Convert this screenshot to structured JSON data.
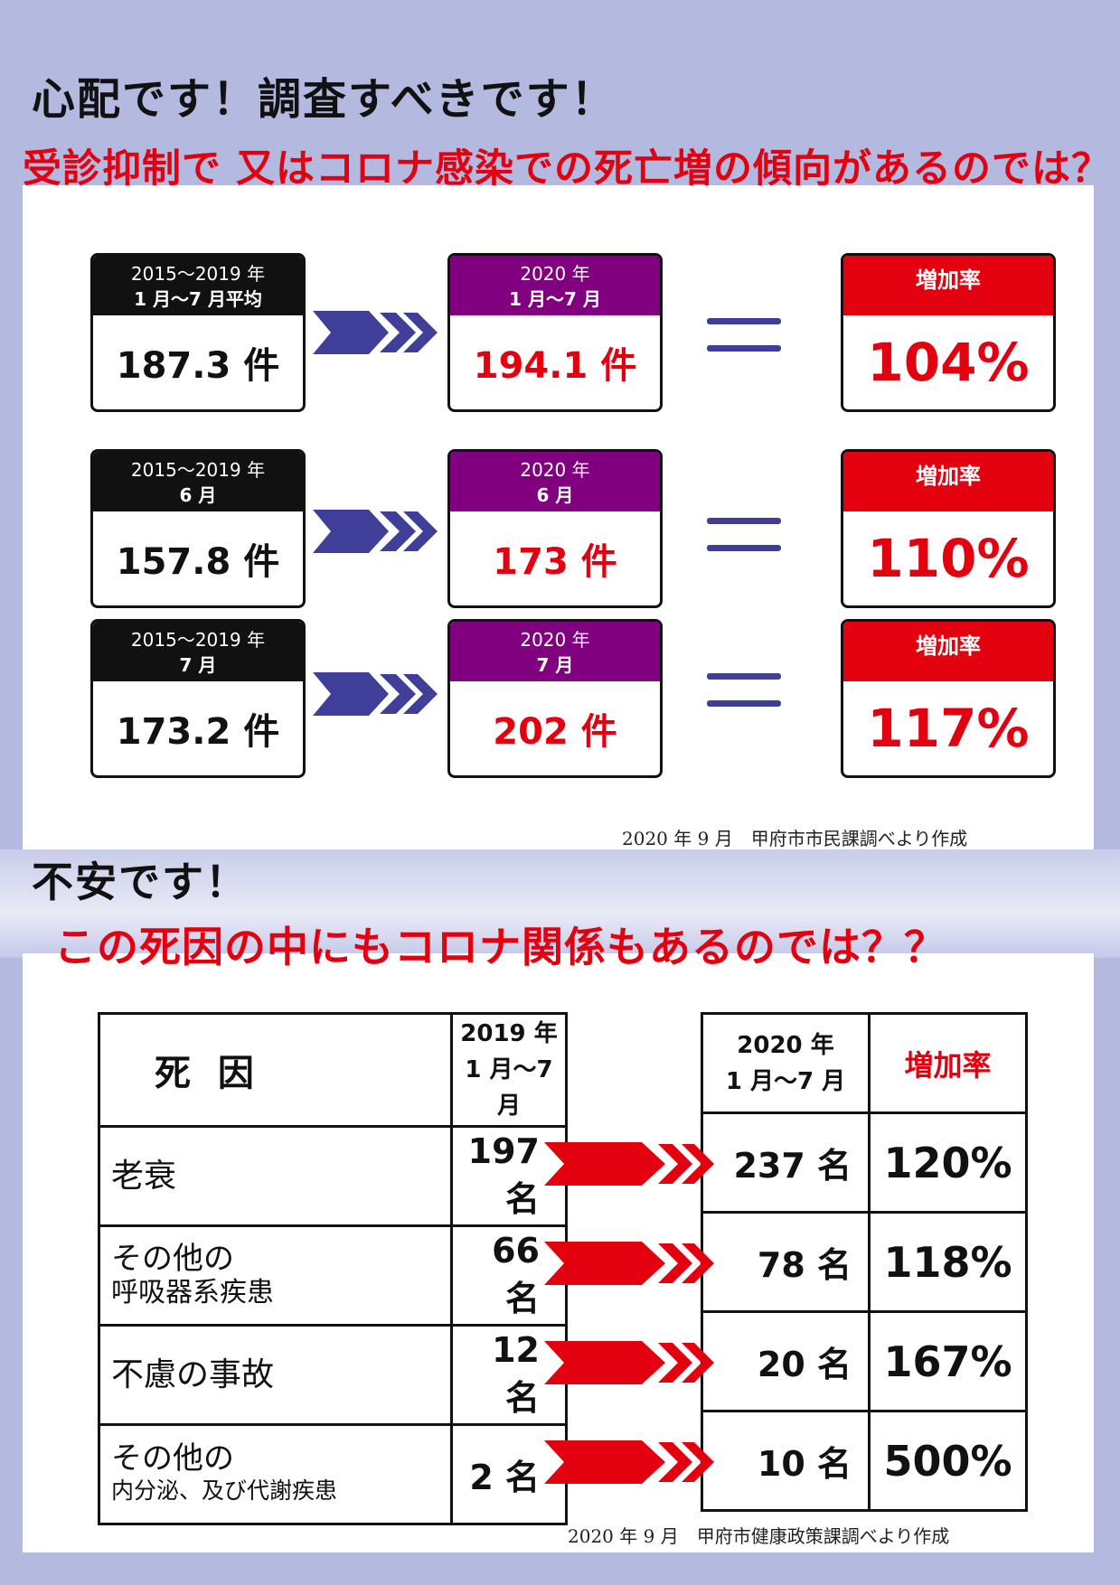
{
  "section1": {
    "heading": "心配です！調査すべきです！",
    "subheading": "受診抑制で 又はコロナ感染での死亡増の傾向があるのでは？",
    "rows": [
      {
        "prev_line1": "2015～2019 年",
        "prev_line2": "1 月～7 月平均",
        "prev_value": "187.3 件",
        "curr_line1": "2020 年",
        "curr_line2": "1 月～7 月",
        "curr_value": "194.1 件",
        "rate_label": "増加率",
        "rate": "104%"
      },
      {
        "prev_line1": "2015～2019 年",
        "prev_line2": "6 月",
        "prev_value": "157.8 件",
        "curr_line1": "2020 年",
        "curr_line2": "6 月",
        "curr_value": "173 件",
        "rate_label": "増加率",
        "rate": "110%"
      },
      {
        "prev_line1": "2015～2019 年",
        "prev_line2": "7 月",
        "prev_value": "173.2 件",
        "curr_line1": "2020 年",
        "curr_line2": "7 月",
        "curr_value": "202 件",
        "rate_label": "増加率",
        "rate": "117%"
      }
    ],
    "source": "2020 年 9 月　甲府市市民課調べより作成"
  },
  "section2": {
    "heading": "不安です！",
    "subheading": "この死因の中にもコロナ関係もあるのでは？？",
    "col_cause": "死 因",
    "col_2019_line1": "2019 年",
    "col_2019_line2": "1 月～7 月",
    "col_2020_line1": "2020 年",
    "col_2020_line2": "1 月～7 月",
    "col_rate": "増加率",
    "rows": [
      {
        "cause_line1": "老衰",
        "cause_line2": "",
        "v2019": "197 名",
        "v2020": "237 名",
        "rate": "120%"
      },
      {
        "cause_line1": "その他の",
        "cause_line2": "呼吸器系疾患",
        "v2019": "66 名",
        "v2020": "78 名",
        "rate": "118%"
      },
      {
        "cause_line1": "不慮の事故",
        "cause_line2": "",
        "v2019": "12 名",
        "v2020": "20 名",
        "rate": "167%"
      },
      {
        "cause_line1": "その他の",
        "cause_line2": "内分泌、及び代謝疾患",
        "v2019": "2 名",
        "v2020": "10 名",
        "rate": "500%"
      }
    ],
    "source": "2020 年 9 月　甲府市健康政策課調べより作成"
  },
  "colors": {
    "red": "#e3000f",
    "purple": "#800080",
    "navy": "#3f3f9a",
    "background": "#b3b9df"
  }
}
